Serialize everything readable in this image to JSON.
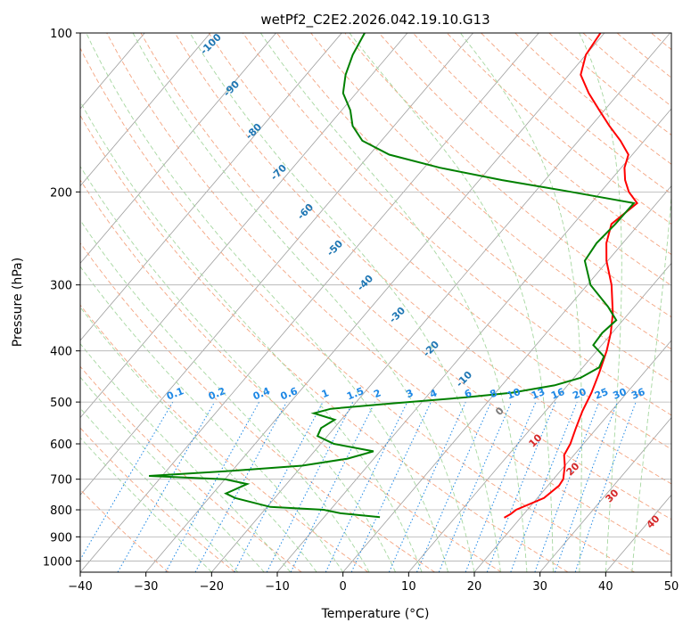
{
  "chart_data": {
    "type": "line",
    "title": "wetPf2_C2E2.2026.042.19.10.G13",
    "xlabel": "Temperature (°C)",
    "ylabel": "Pressure (hPa)",
    "xlim": [
      -40,
      50
    ],
    "ylim": [
      1050,
      100
    ],
    "y_scale": "log",
    "x_ticks": [
      "−40",
      "−30",
      "−20",
      "−10",
      "0",
      "10",
      "20",
      "30",
      "40",
      "50"
    ],
    "y_ticks": [
      "100",
      "200",
      "300",
      "400",
      "500",
      "600",
      "700",
      "800",
      "900",
      "1000"
    ],
    "grid": true,
    "colors": {
      "temperature": "#ff0000",
      "dewpoint": "#008000",
      "isotherm": "#9e9e9e",
      "dry_adiabat": "#f4a582",
      "moist_adiabat": "#a6d7a0",
      "mixing_ratio": "#1e88e5",
      "isotherm_label": "#1f77b4"
    },
    "series": [
      {
        "key": "temperature",
        "p": [
          828,
          815,
          800,
          760,
          720,
          700,
          660,
          630,
          600,
          560,
          520,
          480,
          440,
          400,
          370,
          340,
          300,
          270,
          250,
          230,
          210,
          200,
          190,
          180,
          170,
          160,
          150,
          140,
          130,
          120,
          110,
          100
        ],
        "t": [
          17.5,
          18.0,
          18.3,
          21.0,
          21.7,
          21.5,
          20.0,
          18.5,
          18.0,
          16.8,
          15.6,
          14.6,
          13.2,
          11.5,
          9.8,
          7.6,
          3.7,
          -0.2,
          -2.5,
          -4.2,
          -3.0,
          -5.7,
          -7.8,
          -9.5,
          -10.6,
          -13.6,
          -17.2,
          -20.8,
          -24.6,
          -28.2,
          -30.0,
          -30.6
        ]
      },
      {
        "key": "dewpoint",
        "p": [
          826,
          812,
          800,
          790,
          760,
          745,
          715,
          700,
          690,
          675,
          660,
          640,
          620,
          600,
          580,
          560,
          540,
          525,
          515,
          505,
          500,
          490,
          480,
          465,
          450,
          430,
          410,
          390,
          370,
          350,
          330,
          300,
          270,
          250,
          230,
          210,
          200,
          190,
          180,
          170,
          160,
          150,
          140,
          130,
          120,
          110,
          100
        ],
        "td": [
          -1.5,
          -8.0,
          -11.0,
          -19.5,
          -26.0,
          -28.0,
          -26.0,
          -30.0,
          -42.0,
          -30.0,
          -20.0,
          -14.0,
          -11.0,
          -18.0,
          -21.5,
          -22.0,
          -21.0,
          -25.0,
          -23.0,
          -16.0,
          -12.0,
          -4.0,
          2.5,
          8.0,
          11.0,
          12.5,
          11.8,
          8.7,
          8.5,
          9.0,
          6.0,
          0.5,
          -3.5,
          -4.0,
          -3.6,
          -3.5,
          -14.5,
          -26.5,
          -37.6,
          -47.0,
          -52.9,
          -56.3,
          -58.7,
          -62.0,
          -64.0,
          -65.5,
          -66.5
        ]
      }
    ],
    "isotherm_labels": [
      "-100",
      "-90",
      "-80",
      "-70",
      "-60",
      "-50",
      "-40",
      "-30",
      "-20",
      "-10",
      "0",
      "10",
      "20",
      "30",
      "40"
    ],
    "mixing_ratio_labels": [
      "0.1",
      "0.2",
      "0.4",
      "0.6",
      "1",
      "1.5",
      "2",
      "3",
      "4",
      "6",
      "8",
      "10",
      "13",
      "16",
      "20",
      "25",
      "30",
      "36"
    ]
  }
}
